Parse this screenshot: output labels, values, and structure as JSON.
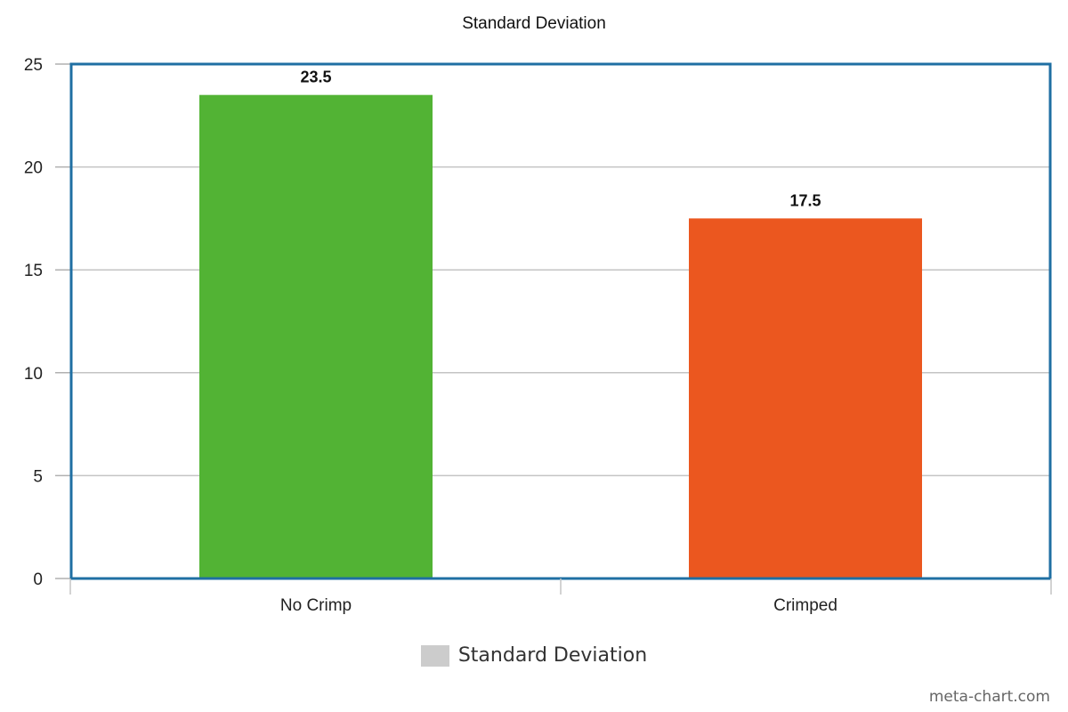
{
  "chart_data": {
    "type": "bar",
    "title": "Standard Deviation",
    "categories": [
      "No Crimp",
      "Crimped"
    ],
    "series": [
      {
        "name": "Standard Deviation",
        "values": [
          23.5,
          17.5
        ],
        "data_labels": [
          "23.5",
          "17.5"
        ]
      }
    ],
    "bar_colors": [
      "#52b334",
      "#eb571f"
    ],
    "ylim": [
      0,
      25
    ],
    "yticks": [
      "0",
      "5",
      "10",
      "15",
      "20",
      "25"
    ],
    "xlabel": "",
    "ylabel": "",
    "grid": true,
    "legend_position": "bottom",
    "legend_color": "#cccccc",
    "frame_color": "#1f6fa3"
  },
  "watermark": "meta-chart.com"
}
